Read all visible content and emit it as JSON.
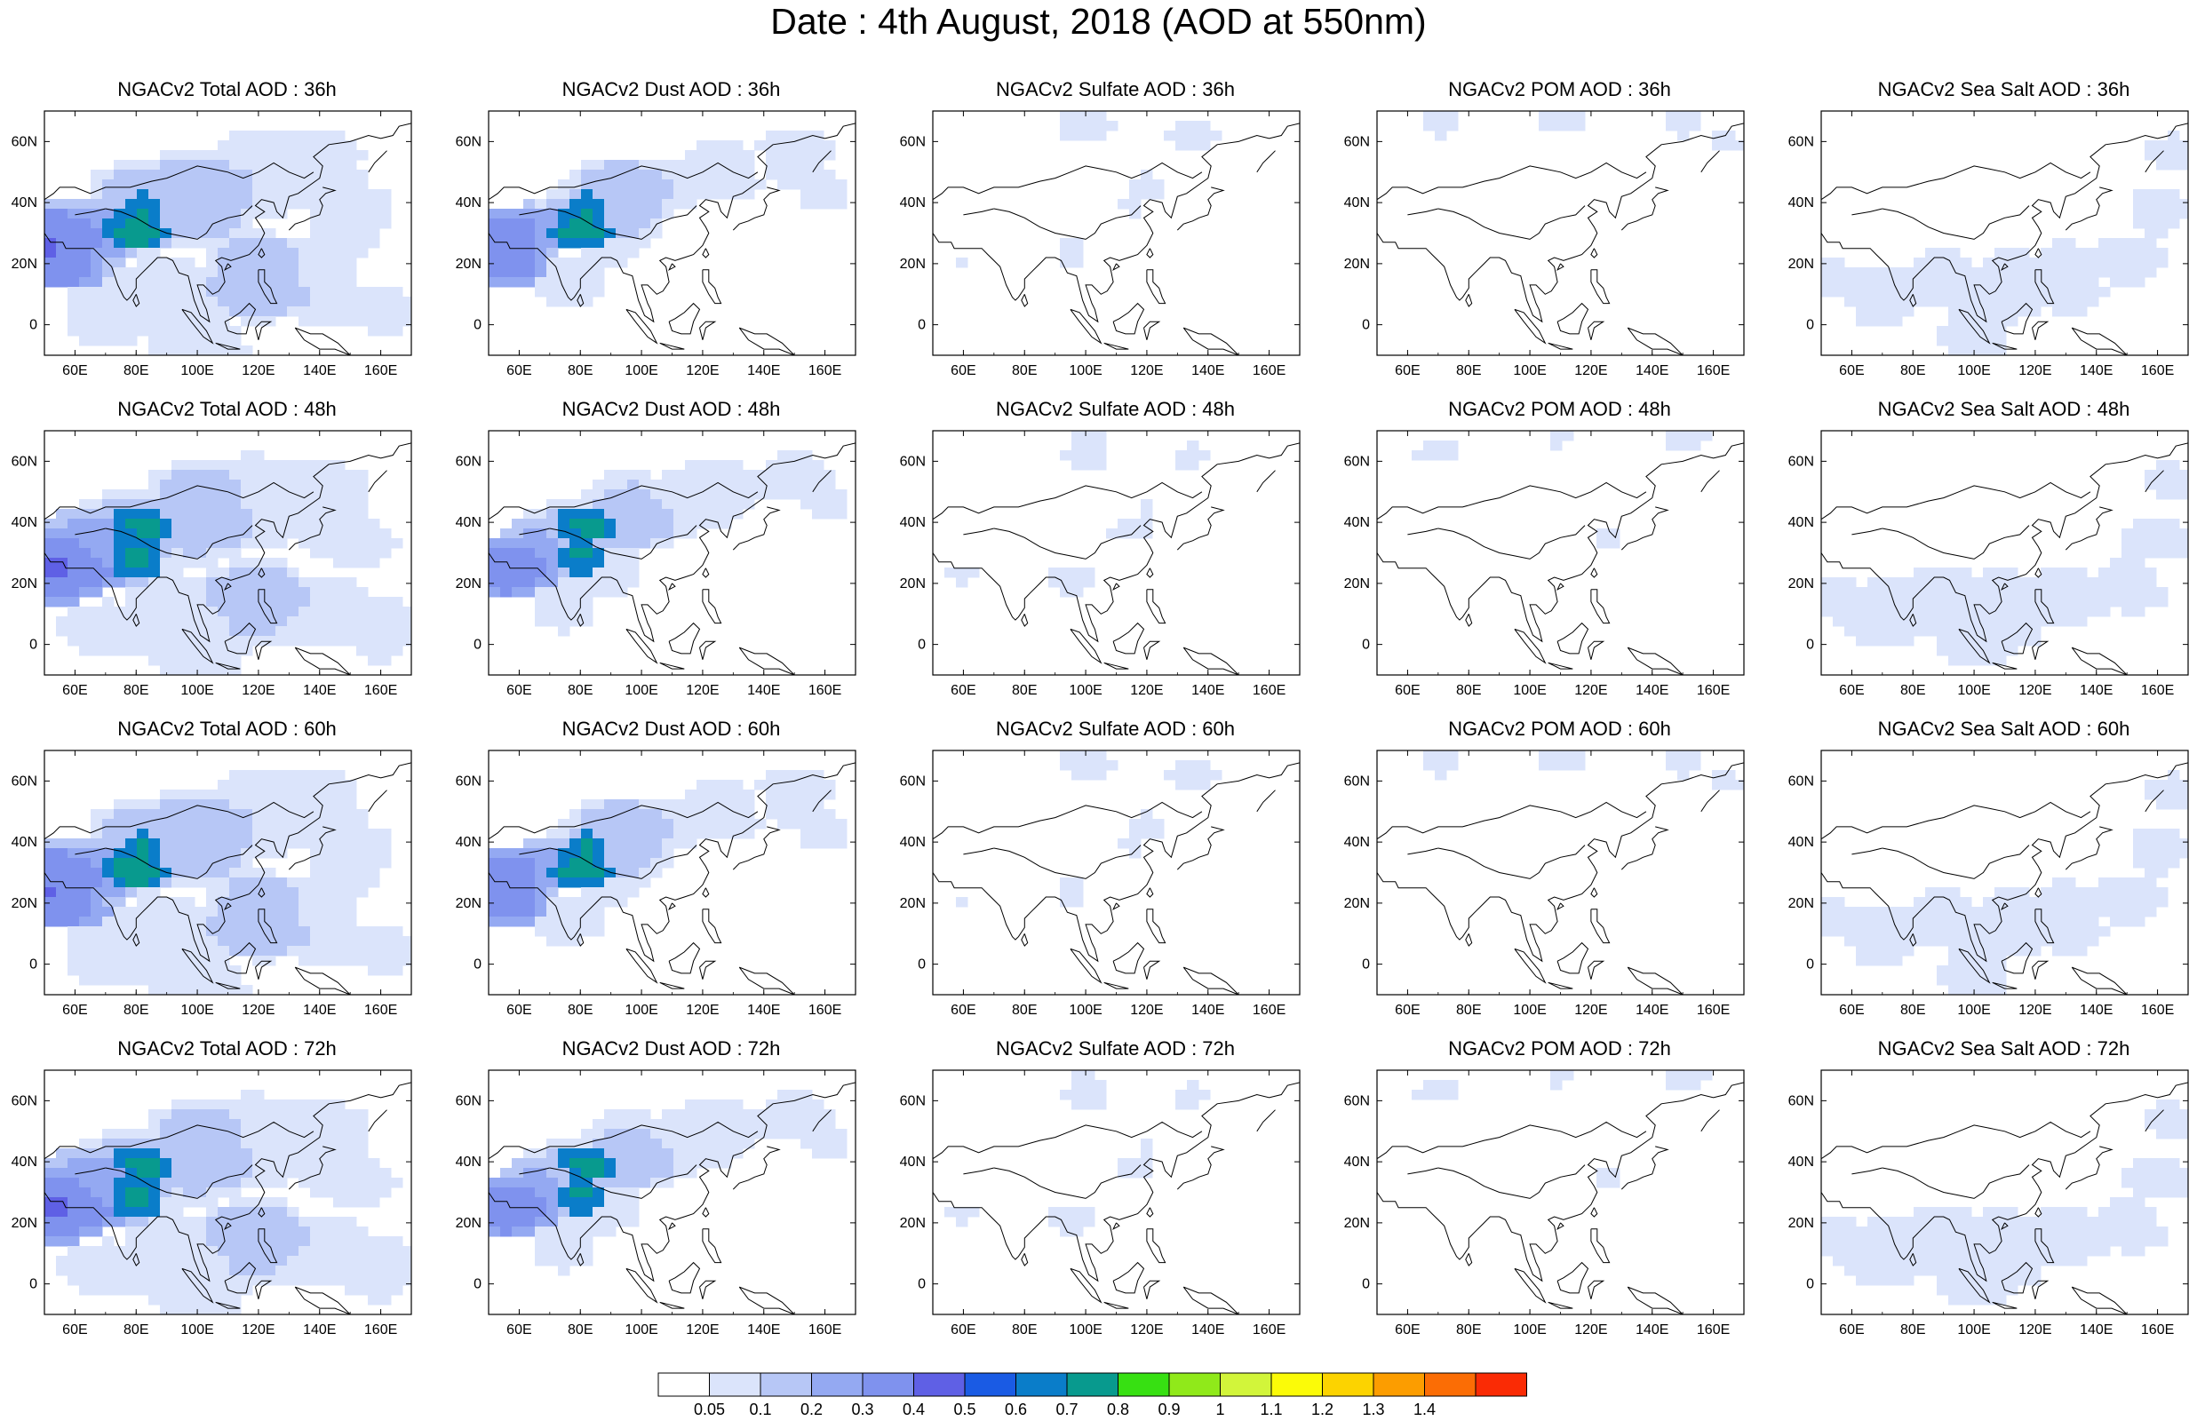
{
  "title": "Date : 4th August, 2018 (AOD at 550nm)",
  "map_axes": {
    "lon_ticks": [
      "60E",
      "80E",
      "100E",
      "120E",
      "140E",
      "160E"
    ],
    "lat_ticks": [
      "60N",
      "40N",
      "20N",
      "0"
    ]
  },
  "panels": [
    [
      "NGACv2 Total AOD : 36h",
      "NGACv2 Dust AOD : 36h",
      "NGACv2 Sulfate AOD : 36h",
      "NGACv2 POM AOD : 36h",
      "NGACv2 Sea Salt AOD : 36h"
    ],
    [
      "NGACv2 Total AOD : 48h",
      "NGACv2 Dust AOD : 48h",
      "NGACv2 Sulfate AOD : 48h",
      "NGACv2 POM AOD : 48h",
      "NGACv2 Sea Salt AOD : 48h"
    ],
    [
      "NGACv2 Total AOD : 60h",
      "NGACv2 Dust AOD : 60h",
      "NGACv2 Sulfate AOD : 60h",
      "NGACv2 POM AOD : 60h",
      "NGACv2 Sea Salt AOD : 60h"
    ],
    [
      "NGACv2 Total AOD : 72h",
      "NGACv2 Dust AOD : 72h",
      "NGACv2 Sulfate AOD : 72h",
      "NGACv2 POM AOD : 72h",
      "NGACv2 Sea Salt  AOD : 72h"
    ]
  ],
  "colorbar": {
    "labels": [
      "0.05",
      "0.1",
      "0.2",
      "0.3",
      "0.4",
      "0.5",
      "0.6",
      "0.7",
      "0.8",
      "0.9",
      "1",
      "1.1",
      "1.2",
      "1.3",
      "1.4"
    ],
    "colors": [
      "#ffffff",
      "#dbe4fb",
      "#b7c7f6",
      "#94a9f2",
      "#7f92ee",
      "#5f60e5",
      "#1a5be4",
      "#0a7dc9",
      "#089a8e",
      "#37e012",
      "#90e91a",
      "#d2f53a",
      "#fbfb08",
      "#fcd300",
      "#fc9d00",
      "#fb6d05",
      "#fa2b05"
    ]
  }
}
